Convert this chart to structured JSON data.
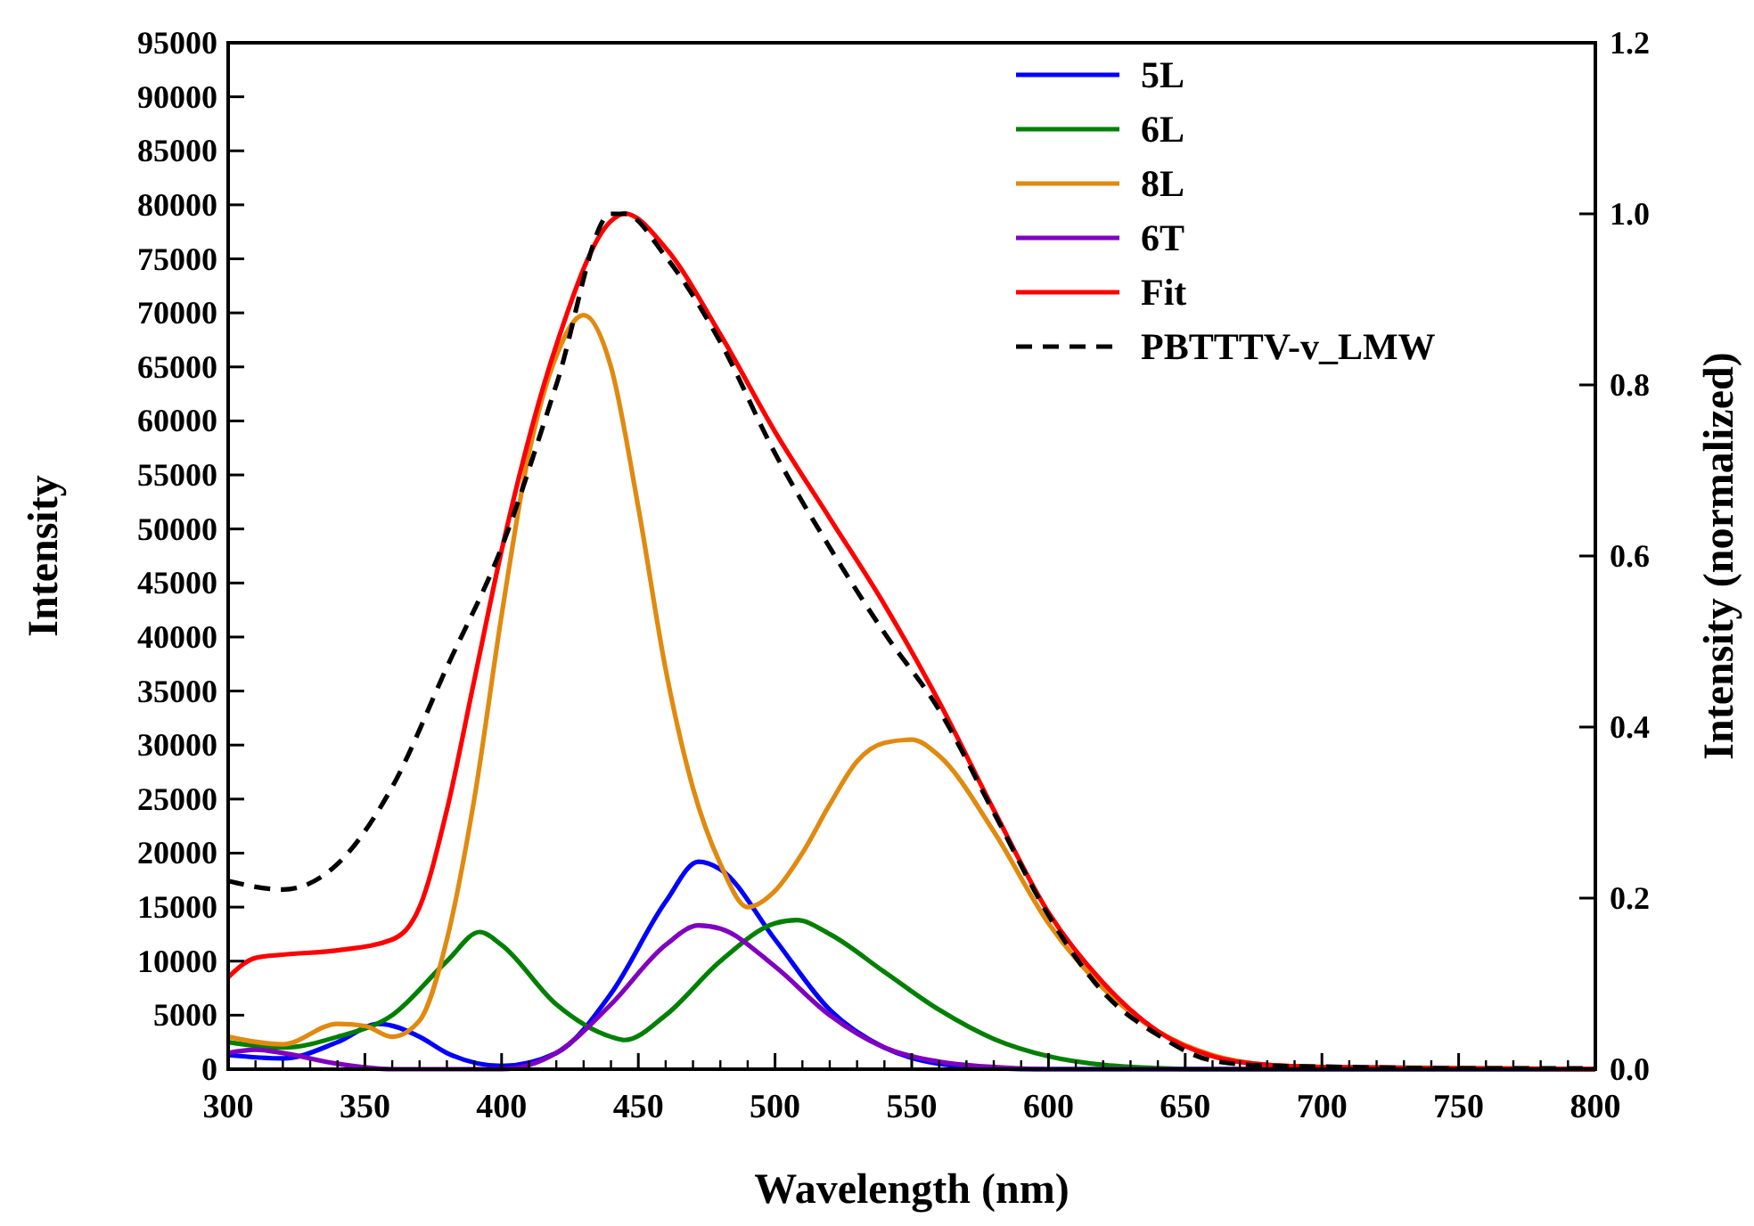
{
  "chart_data": {
    "type": "line",
    "xlabel": "Wavelength (nm)",
    "ylabel": "Intensity",
    "y2label": "Intensity (normalized)",
    "xlim": [
      300,
      800
    ],
    "xticks": [
      300,
      350,
      400,
      450,
      500,
      550,
      600,
      650,
      700,
      750,
      800
    ],
    "ylim": [
      0,
      95000
    ],
    "yticks": [
      0,
      5000,
      10000,
      15000,
      20000,
      25000,
      30000,
      35000,
      40000,
      45000,
      50000,
      55000,
      60000,
      65000,
      70000,
      75000,
      80000,
      85000,
      90000,
      95000
    ],
    "y2lim": [
      0,
      1.2
    ],
    "y2ticks": [
      {
        "value": 0,
        "label": "0.0"
      },
      {
        "value": 0.2,
        "label": "0.2"
      },
      {
        "value": 0.4,
        "label": "0.4"
      },
      {
        "value": 0.6,
        "label": "0.6"
      },
      {
        "value": 0.8,
        "label": "0.8"
      },
      {
        "value": 1,
        "label": "1.0"
      },
      {
        "value": 1.2,
        "label": "1.2"
      }
    ],
    "legend": "top right",
    "grid": false,
    "marker": "none",
    "series": [
      {
        "name": "5L",
        "color": "#0000ff",
        "x": [
          300,
          320,
          340,
          355,
          370,
          380,
          400,
          420,
          440,
          460,
          472,
          480,
          500,
          520,
          540,
          560,
          580,
          600,
          800
        ],
        "values": [
          1300,
          1000,
          2500,
          4200,
          3000,
          1500,
          300,
          1500,
          7000,
          15500,
          19200,
          18500,
          12000,
          5500,
          2000,
          500,
          100,
          0,
          0
        ]
      },
      {
        "name": "6L",
        "color": "#008000",
        "x": [
          300,
          320,
          340,
          360,
          380,
          392,
          400,
          420,
          440,
          445,
          460,
          480,
          500,
          508,
          520,
          540,
          560,
          580,
          600,
          620,
          640,
          660,
          800
        ],
        "values": [
          2500,
          2000,
          3000,
          5000,
          10000,
          12700,
          11500,
          6000,
          3000,
          2700,
          5000,
          10000,
          13500,
          13800,
          12500,
          9000,
          5500,
          2800,
          1200,
          400,
          100,
          0,
          0
        ]
      },
      {
        "name": "8L",
        "color": "#e08a10",
        "x": [
          300,
          320,
          340,
          350,
          360,
          370,
          380,
          390,
          400,
          410,
          420,
          430,
          440,
          450,
          460,
          470,
          480,
          490,
          500,
          510,
          520,
          530,
          540,
          550,
          560,
          580,
          600,
          620,
          640,
          660,
          680,
          700
        ],
        "values": [
          3000,
          2300,
          4200,
          4000,
          3000,
          4500,
          12000,
          25000,
          42000,
          57000,
          66000,
          69800,
          65000,
          52000,
          37000,
          26000,
          19000,
          15000,
          16500,
          20000,
          24500,
          28500,
          30200,
          30500,
          29000,
          22000,
          13500,
          7500,
          3500,
          1300,
          400,
          200
        ]
      },
      {
        "name": "6T",
        "color": "#8000c0",
        "x": [
          300,
          310,
          320,
          340,
          360,
          380,
          400,
          420,
          440,
          460,
          472,
          480,
          500,
          520,
          540,
          560,
          580,
          600,
          800
        ],
        "values": [
          1500,
          1800,
          1500,
          500,
          0,
          0,
          0,
          1500,
          6000,
          11500,
          13300,
          13000,
          9500,
          5000,
          2000,
          700,
          200,
          0,
          0
        ]
      },
      {
        "name": "Fit",
        "color": "#ff0000",
        "x": [
          300,
          310,
          320,
          340,
          360,
          370,
          380,
          390,
          400,
          420,
          440,
          445,
          460,
          480,
          500,
          520,
          540,
          560,
          580,
          600,
          620,
          640,
          660,
          680,
          700,
          750,
          800
        ],
        "values": [
          8500,
          10300,
          10600,
          11000,
          12000,
          15000,
          24000,
          36000,
          48000,
          67000,
          78500,
          79200,
          76000,
          68000,
          59000,
          51000,
          43000,
          34000,
          24000,
          14500,
          8000,
          3500,
          1200,
          400,
          200,
          100,
          0
        ]
      },
      {
        "name": "PBTTTV-v_LMW",
        "color": "#000000",
        "axis": "y2",
        "line_style": "dashed",
        "x": [
          300,
          320,
          340,
          360,
          380,
          400,
          420,
          440,
          445,
          460,
          480,
          500,
          520,
          540,
          560,
          580,
          600,
          620,
          640,
          660,
          680,
          700,
          750,
          800
        ],
        "values": [
          0.22,
          0.21,
          0.24,
          0.33,
          0.47,
          0.61,
          0.8,
          1.0,
          1.0,
          0.95,
          0.85,
          0.72,
          0.61,
          0.51,
          0.42,
          0.3,
          0.18,
          0.09,
          0.04,
          0.01,
          0.004,
          0.003,
          0.001,
          0.001
        ]
      }
    ]
  }
}
